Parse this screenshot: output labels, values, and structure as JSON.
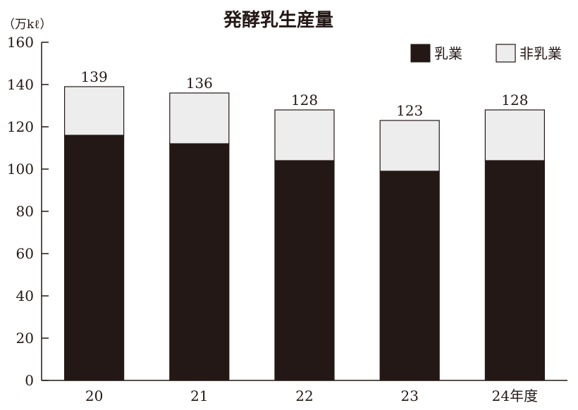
{
  "chart_data": {
    "type": "bar",
    "stacked": true,
    "title": "発酵乳生産量",
    "ylabel": "（万kℓ）",
    "categories": [
      "20",
      "21",
      "22",
      "23",
      "24年度"
    ],
    "series": [
      {
        "name": "乳業",
        "values": [
          116,
          112,
          104,
          99,
          104
        ],
        "color": "#231815"
      },
      {
        "name": "非乳業",
        "values": [
          23,
          24,
          24,
          24,
          24
        ],
        "color": "#ededed"
      }
    ],
    "totals": [
      "139",
      "136",
      "128",
      "123",
      "128"
    ],
    "ylim": [
      0,
      160
    ],
    "yticks": [
      "0",
      "20",
      "40",
      "60",
      "80",
      "100",
      "120",
      "140",
      "160"
    ],
    "grid": false,
    "legend_position": "top-right"
  }
}
